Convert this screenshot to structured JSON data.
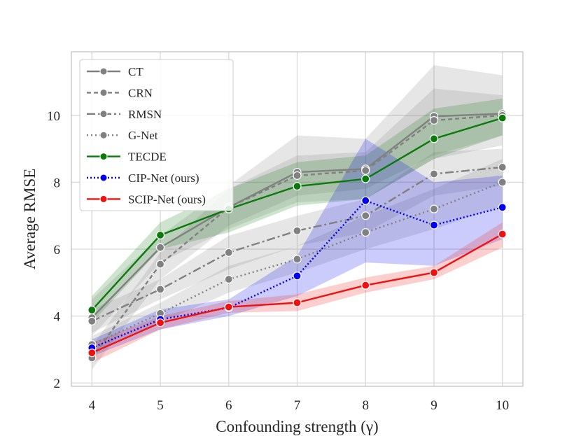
{
  "chart_data": {
    "type": "line",
    "title": "",
    "xlabel": "Confounding strength (γ)",
    "ylabel": "Average RMSE",
    "x": [
      4,
      5,
      6,
      7,
      8,
      9,
      10
    ],
    "xlim": [
      3.7,
      10.3
    ],
    "ylim": [
      1.9,
      11.9
    ],
    "xticks": [
      4,
      5,
      6,
      7,
      8,
      9,
      10
    ],
    "yticks": [
      2,
      4,
      6,
      8,
      10
    ],
    "grid": true,
    "legend_position": "top-left",
    "series": [
      {
        "name": "CT",
        "color": "#808080",
        "dash": "solid",
        "values": [
          3.95,
          6.05,
          7.25,
          8.3,
          8.4,
          9.97,
          10.05
        ],
        "lower": [
          3.4,
          5.6,
          6.6,
          7.4,
          7.5,
          8.7,
          9.1
        ],
        "upper": [
          4.5,
          6.4,
          7.9,
          9.4,
          9.3,
          11.5,
          11.2
        ]
      },
      {
        "name": "CRN",
        "color": "#808080",
        "dash": "6,4",
        "values": [
          2.75,
          5.55,
          7.25,
          8.2,
          8.35,
          9.85,
          10.0
        ],
        "lower": [
          2.4,
          5.1,
          6.7,
          7.6,
          7.8,
          8.8,
          9.4
        ],
        "upper": [
          3.1,
          5.9,
          7.8,
          8.8,
          8.9,
          10.8,
          10.6
        ]
      },
      {
        "name": "RMSN",
        "color": "#808080",
        "dash": "12,4,3,4",
        "values": [
          3.85,
          4.8,
          5.9,
          6.55,
          7.0,
          8.25,
          8.45
        ],
        "lower": [
          3.5,
          4.5,
          5.4,
          6.1,
          6.5,
          7.6,
          7.9
        ],
        "upper": [
          4.2,
          5.1,
          6.4,
          7.0,
          7.5,
          8.9,
          9.0
        ]
      },
      {
        "name": "G-Net",
        "color": "#808080",
        "dash": "2,4",
        "values": [
          3.15,
          4.08,
          5.1,
          5.7,
          6.5,
          7.2,
          8.0
        ],
        "lower": [
          2.9,
          3.8,
          4.7,
          5.3,
          6.0,
          6.6,
          7.3
        ],
        "upper": [
          3.4,
          4.4,
          5.5,
          6.1,
          7.0,
          7.8,
          8.7
        ]
      },
      {
        "name": "TECDE",
        "color": "#0a7a0a",
        "dash": "solid",
        "values": [
          4.18,
          6.42,
          7.2,
          7.88,
          8.1,
          9.3,
          9.92
        ],
        "lower": [
          3.8,
          6.0,
          6.5,
          7.3,
          7.5,
          8.7,
          9.4
        ],
        "upper": [
          4.6,
          6.8,
          7.8,
          8.6,
          8.8,
          10.2,
          10.5
        ]
      },
      {
        "name": "CIP-Net (ours)",
        "color": "#0000ee",
        "dash": "2,3",
        "values": [
          3.05,
          3.9,
          4.25,
          5.2,
          7.45,
          6.72,
          7.25
        ],
        "lower": [
          2.8,
          3.6,
          4.0,
          4.6,
          5.6,
          5.5,
          6.3
        ],
        "upper": [
          3.3,
          4.2,
          4.5,
          5.8,
          9.3,
          8.0,
          8.2
        ]
      },
      {
        "name": "SCIP-Net (ours)",
        "color": "#ee1111",
        "dash": "solid",
        "values": [
          2.9,
          3.8,
          4.27,
          4.4,
          4.92,
          5.3,
          6.45
        ],
        "lower": [
          2.6,
          3.6,
          4.1,
          4.15,
          4.7,
          5.1,
          6.05
        ],
        "upper": [
          3.2,
          4.0,
          4.45,
          4.65,
          5.15,
          5.5,
          6.8
        ]
      }
    ]
  }
}
